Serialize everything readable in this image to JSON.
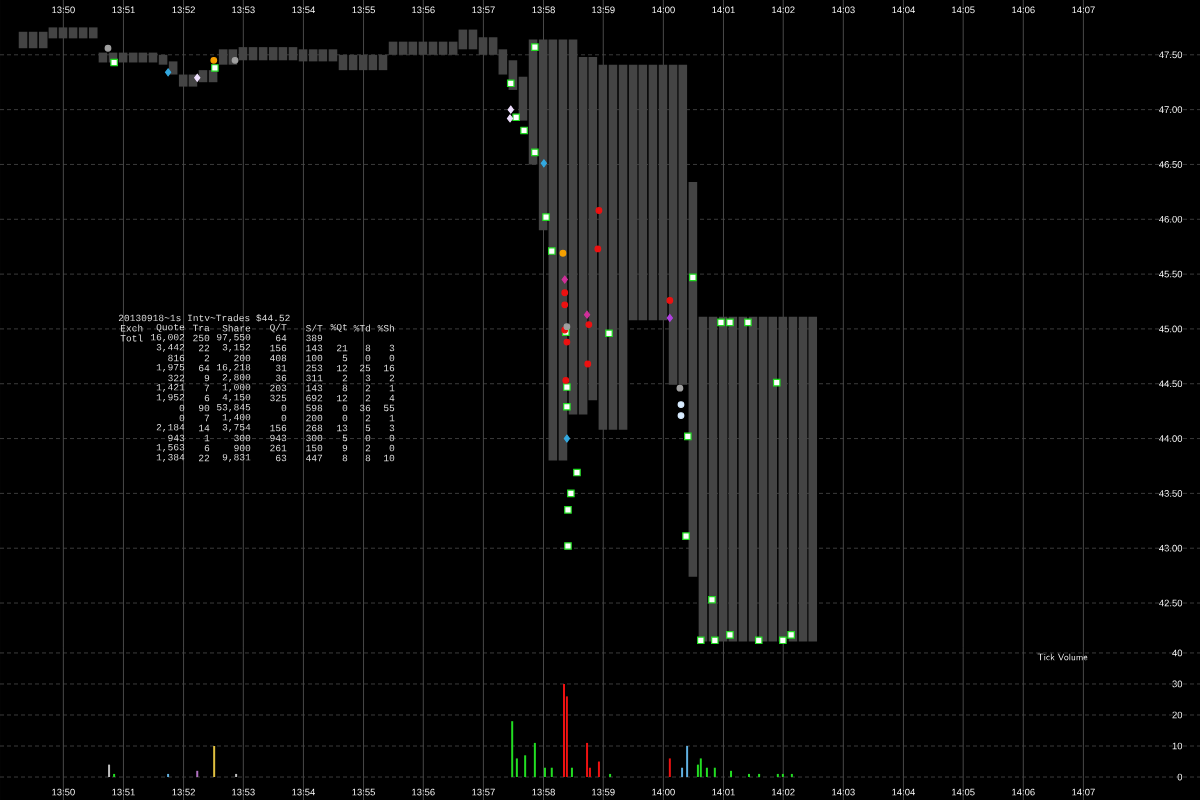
{
  "chart_data": [
    {
      "type": "scatter",
      "title": "20130918~1s Intv~Trades $44.52",
      "xlim": [
        13.8157,
        14.1491
      ],
      "ylim": [
        42.09,
        48.0
      ],
      "xticks": [
        {
          "value": 13.8333,
          "label": "13:50"
        },
        {
          "value": 13.85,
          "label": "13:51"
        },
        {
          "value": 13.8667,
          "label": "13:52"
        },
        {
          "value": 13.8833,
          "label": "13:53"
        },
        {
          "value": 13.9,
          "label": "13:54"
        },
        {
          "value": 13.9167,
          "label": "13:55"
        },
        {
          "value": 13.9333,
          "label": "13:56"
        },
        {
          "value": 13.95,
          "label": "13:57"
        },
        {
          "value": 13.9667,
          "label": "13:58"
        },
        {
          "value": 13.9833,
          "label": "13:59"
        },
        {
          "value": 14.0,
          "label": "14:00"
        },
        {
          "value": 14.0167,
          "label": "14:01"
        },
        {
          "value": 14.0333,
          "label": "14:02"
        },
        {
          "value": 14.05,
          "label": "14:03"
        },
        {
          "value": 14.0667,
          "label": "14:04"
        },
        {
          "value": 14.0833,
          "label": "14:05"
        },
        {
          "value": 14.1,
          "label": "14:06"
        },
        {
          "value": 14.1167,
          "label": "14:07"
        }
      ],
      "yticks": [
        {
          "value": 42.5,
          "label": "42.50"
        },
        {
          "value": 43.0,
          "label": "43.00"
        },
        {
          "value": 43.5,
          "label": "43.50"
        },
        {
          "value": 44.0,
          "label": "44.00"
        },
        {
          "value": 44.5,
          "label": "44.50"
        },
        {
          "value": 45.0,
          "label": "45.00"
        },
        {
          "value": 45.5,
          "label": "45.50"
        },
        {
          "value": 46.0,
          "label": "46.00"
        },
        {
          "value": 46.5,
          "label": "46.50"
        },
        {
          "value": 47.0,
          "label": "47.00"
        },
        {
          "value": 47.5,
          "label": "47.50"
        }
      ],
      "grid": true,
      "annotations": [
        "Exch",
        "Quote",
        "Tra",
        "Share",
        "Q/T",
        "S/T",
        "%Qt",
        "%Td",
        "%Sh",
        "Totl",
        "16,002",
        "250",
        "97,550",
        "64",
        "389",
        "3,442",
        "22",
        "3,152",
        "156",
        "143",
        "21",
        "8",
        "3",
        "816",
        "2",
        "200",
        "408",
        "100",
        "5",
        "0",
        "0",
        "1,975",
        "64",
        "16,218",
        "31",
        "253",
        "12",
        "25",
        "16",
        "322",
        "9",
        "2,800",
        "36",
        "311",
        "2",
        "3",
        "2",
        "1,421",
        "7",
        "1,000",
        "203",
        "143",
        "8",
        "2",
        "1",
        "1,952",
        "6",
        "4,150",
        "325",
        "692",
        "12",
        "2",
        "4",
        "0",
        "90",
        "53,845",
        "0",
        "598",
        "0",
        "36",
        "55",
        "0",
        "7",
        "1,400",
        "0",
        "200",
        "0",
        "2",
        "1",
        "2,184",
        "14",
        "3,754",
        "156",
        "268",
        "13",
        "5",
        "3",
        "943",
        "1",
        "300",
        "943",
        "300",
        "5",
        "0",
        "0",
        "1,563",
        "6",
        "900",
        "261",
        "150",
        "9",
        "2",
        "0",
        "1,384",
        "22",
        "9,831",
        "63",
        "447",
        "8",
        "8",
        "10"
      ],
      "series": [
        {
          "type": "bar",
          "color": "#444444",
          "x": [
            13.8221,
            13.8249,
            13.8277,
            13.8304,
            13.8332,
            13.836,
            13.8388,
            13.8416,
            13.8443,
            13.8471,
            13.8499,
            13.8527,
            13.8554,
            13.8582,
            13.861,
            13.8638,
            13.8666,
            13.8693,
            13.8721,
            13.8749,
            13.8777,
            13.8804,
            13.8832,
            13.886,
            13.8888,
            13.8916,
            13.8943,
            13.8971,
            13.8999,
            13.9027,
            13.9054,
            13.9082,
            13.911,
            13.9138,
            13.9166,
            13.9193,
            13.9221,
            13.9249,
            13.9277,
            13.9304,
            13.9332,
            13.936,
            13.9388,
            13.9416,
            13.9443,
            13.9471,
            13.9499,
            13.9527,
            13.9554,
            13.9582,
            13.961,
            13.9638,
            13.9666,
            13.9693,
            13.9721,
            13.9749,
            13.9777,
            13.9804,
            13.9832,
            13.986,
            13.9888,
            13.9916,
            13.9943,
            13.9971,
            13.9999,
            14.0027,
            14.0054,
            14.0082,
            14.011,
            14.0138,
            14.0166,
            14.0193,
            14.0221,
            14.0249,
            14.0277,
            14.0304,
            14.0332,
            14.036,
            14.0388,
            14.0415
          ],
          "base": [
            47.56,
            47.56,
            47.56,
            47.65,
            47.65,
            47.65,
            47.65,
            47.65,
            47.43,
            47.43,
            47.43,
            47.43,
            47.43,
            47.43,
            47.41,
            47.32,
            47.21,
            47.21,
            47.25,
            47.25,
            47.41,
            47.41,
            47.45,
            47.45,
            47.45,
            47.45,
            47.45,
            47.45,
            47.44,
            47.44,
            47.44,
            47.44,
            47.36,
            47.36,
            47.36,
            47.36,
            47.36,
            47.5,
            47.5,
            47.5,
            47.5,
            47.5,
            47.5,
            47.5,
            47.55,
            47.55,
            47.5,
            47.5,
            47.32,
            47.18,
            46.9,
            46.5,
            45.9,
            43.8,
            43.8,
            44.22,
            44.22,
            44.35,
            44.08,
            44.08,
            44.08,
            45.08,
            45.08,
            45.08,
            45.08,
            44.49,
            44.49,
            42.74,
            42.15,
            42.15,
            42.15,
            42.15,
            42.15,
            42.15,
            42.15,
            42.15,
            42.15,
            42.15,
            42.15,
            42.15
          ],
          "values": [
            0.15,
            0.15,
            0.15,
            0.1,
            0.1,
            0.1,
            0.1,
            0.1,
            0.09,
            0.09,
            0.09,
            0.09,
            0.09,
            0.09,
            0.09,
            0.12,
            0.11,
            0.11,
            0.11,
            0.11,
            0.14,
            0.14,
            0.12,
            0.12,
            0.12,
            0.12,
            0.12,
            0.12,
            0.11,
            0.11,
            0.11,
            0.11,
            0.14,
            0.14,
            0.14,
            0.14,
            0.14,
            0.12,
            0.12,
            0.12,
            0.12,
            0.12,
            0.12,
            0.12,
            0.18,
            0.18,
            0.16,
            0.16,
            0.23,
            0.27,
            0.4,
            1.14,
            1.74,
            3.84,
            3.84,
            3.42,
            3.26,
            3.13,
            3.33,
            3.33,
            3.33,
            2.33,
            2.33,
            2.33,
            2.33,
            2.92,
            2.92,
            3.6,
            2.96,
            2.96,
            2.96,
            2.96,
            2.96,
            2.96,
            2.96,
            2.96,
            2.96,
            2.96,
            2.96,
            2.96
          ]
        },
        {
          "type": "scatter",
          "marker": "square",
          "color": "#22dd22",
          "x": [
            13.8474,
            13.8754,
            13.9576,
            13.9591,
            13.9613,
            13.9643,
            13.9674,
            13.9682,
            13.969,
            13.9643,
            13.9732,
            13.9732,
            13.976,
            13.9743,
            13.9735,
            13.9735,
            13.9849,
            13.9729,
            14.0063,
            14.0068,
            14.0063,
            14.0135,
            14.0104,
            14.0143,
            14.0185,
            14.0265,
            14.0332,
            14.0355,
            14.016,
            14.0185,
            14.0235,
            14.0315,
            14.0082
          ],
          "values": [
            47.43,
            47.38,
            47.24,
            46.93,
            46.81,
            46.61,
            46.02,
            null,
            45.71,
            47.57,
            44.47,
            44.29,
            43.69,
            43.5,
            43.35,
            43.02,
            44.96,
            44.97,
            null,
            44.02,
            43.11,
            42.53,
            42.16,
            42.16,
            42.21,
            42.16,
            42.16,
            42.21,
            45.06,
            45.06,
            45.06,
            44.51,
            45.47
          ]
        },
        {
          "type": "scatter",
          "marker": "circle",
          "color": "#ee1111",
          "x": [
            13.9726,
            13.9726,
            13.9726,
            13.9732,
            13.9821,
            13.9818,
            13.9793,
            13.979,
            14.0018,
            13.9729
          ],
          "values": [
            45.33,
            45.22,
            44.99,
            44.88,
            46.08,
            45.73,
            45.04,
            44.68,
            45.26,
            44.53
          ]
        },
        {
          "type": "scatter",
          "marker": "circle",
          "color": "#a0a0a0",
          "x": [
            13.8457,
            13.881,
            14.0046,
            13.9732
          ],
          "values": [
            47.56,
            47.45,
            44.46,
            45.02
          ]
        },
        {
          "type": "scatter",
          "marker": "circle",
          "color": "#f5a000",
          "x": [
            13.8751,
            13.9721
          ],
          "values": [
            47.45,
            45.69
          ]
        },
        {
          "type": "scatter",
          "marker": "diamond",
          "color": "#33a9e0",
          "x": [
            13.8624,
            13.9668,
            13.9732
          ],
          "values": [
            47.34,
            46.51,
            44.0
          ]
        },
        {
          "type": "scatter",
          "marker": "diamond",
          "color": "#b040e0",
          "x": [
            14.0018
          ],
          "values": [
            45.1
          ]
        },
        {
          "type": "scatter",
          "marker": "diamond",
          "color": "#d0309a",
          "x": [
            13.9726,
            13.9788
          ],
          "values": [
            45.45,
            45.13
          ]
        },
        {
          "type": "scatter",
          "marker": "diamond",
          "color": "#f0e0ff",
          "x": [
            13.8705,
            13.9576,
            13.9574
          ],
          "values": [
            47.29,
            47.0,
            46.92
          ]
        },
        {
          "type": "scatter",
          "marker": "circle",
          "color": "#d8ecff",
          "x": [
            14.0049,
            14.0049
          ],
          "values": [
            44.31,
            44.21
          ]
        }
      ]
    },
    {
      "type": "bar",
      "xlim": [
        13.8157,
        14.1491
      ],
      "ylim": [
        -7.4,
        41.6
      ],
      "xticks": [
        {
          "value": 13.8333,
          "label": "13:50"
        },
        {
          "value": 13.85,
          "label": "13:51"
        },
        {
          "value": 13.8667,
          "label": "13:52"
        },
        {
          "value": 13.8833,
          "label": "13:53"
        },
        {
          "value": 13.9,
          "label": "13:54"
        },
        {
          "value": 13.9167,
          "label": "13:55"
        },
        {
          "value": 13.9333,
          "label": "13:56"
        },
        {
          "value": 13.95,
          "label": "13:57"
        },
        {
          "value": 13.9667,
          "label": "13:58"
        },
        {
          "value": 13.9833,
          "label": "13:59"
        },
        {
          "value": 14.0,
          "label": "14:00"
        },
        {
          "value": 14.0167,
          "label": "14:01"
        },
        {
          "value": 14.0333,
          "label": "14:02"
        },
        {
          "value": 14.05,
          "label": "14:03"
        },
        {
          "value": 14.0667,
          "label": "14:04"
        },
        {
          "value": 14.0833,
          "label": "14:05"
        },
        {
          "value": 14.1,
          "label": "14:06"
        },
        {
          "value": 14.1167,
          "label": "14:07"
        }
      ],
      "yticks": [
        0,
        10,
        20,
        30,
        40
      ],
      "grid": true,
      "annotations": [
        "Tick Volume"
      ],
      "x": [
        13.846,
        13.8474,
        13.8624,
        13.8705,
        13.8752,
        13.8813,
        13.958,
        13.9593,
        13.9616,
        13.9643,
        13.9671,
        13.969,
        13.9724,
        13.9732,
        13.9746,
        13.9788,
        13.9796,
        13.9821,
        13.9852,
        14.0018,
        14.0052,
        14.0066,
        14.0096,
        14.0104,
        14.0121,
        14.0143,
        14.0188,
        14.0238,
        14.0266,
        14.0318,
        14.0332,
        14.0357
      ],
      "values": [
        4,
        1,
        1,
        2,
        10,
        1,
        18,
        6,
        7,
        11,
        3,
        3,
        30,
        26,
        3,
        11,
        3,
        5,
        1,
        6,
        3,
        10,
        4,
        6,
        3,
        3,
        2,
        1,
        1,
        1,
        1,
        1
      ],
      "colors": [
        "#c0c0c0",
        "#22dd22",
        "#60b0e0",
        "#b070c0",
        "#e0c040",
        "#c0c0c0",
        "#22dd22",
        "#22dd22",
        "#22dd22",
        "#22dd22",
        "#22dd22",
        "#22dd22",
        "#ee1111",
        "#ee1111",
        "#22dd22",
        "#ee1111",
        "#ee1111",
        "#ee1111",
        "#22dd22",
        "#ee1111",
        "#60b0e0",
        "#60b0e0",
        "#22dd22",
        "#22dd22",
        "#22dd22",
        "#22dd22",
        "#22dd22",
        "#22dd22",
        "#22dd22",
        "#22dd22",
        "#22dd22",
        "#22dd22"
      ]
    }
  ]
}
